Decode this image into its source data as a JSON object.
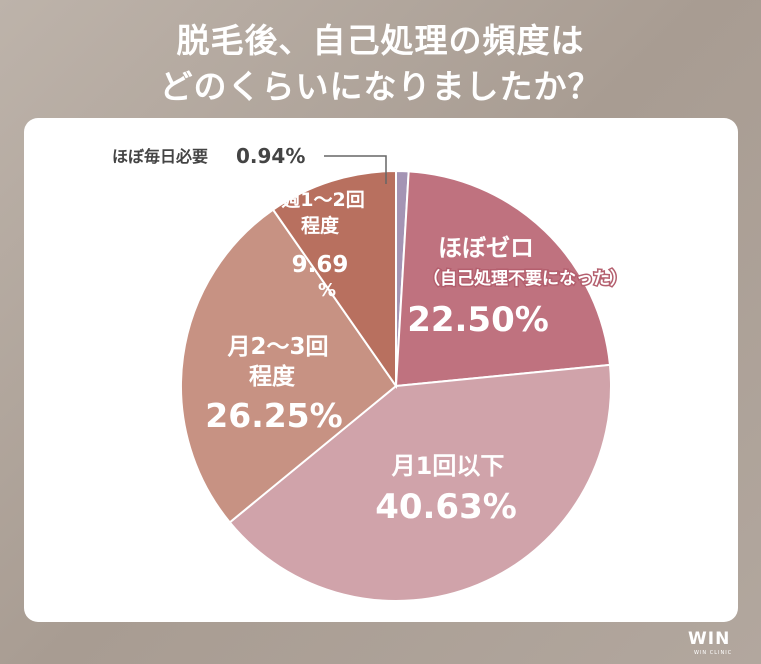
{
  "title_line1": "脱毛後、自己処理の頻度は",
  "title_line2": "どのくらいになりましたか？",
  "watermark": {
    "brand": "WIN",
    "sub": "WIN CLINIC"
  },
  "chart_data": {
    "type": "pie",
    "start_angle_deg": 0,
    "direction": "clockwise",
    "slices": [
      {
        "label": "ほぼ毎日必要",
        "value": 0.94,
        "value_text": "0.94%",
        "color": "#a494b4"
      },
      {
        "label": "ほぼゼロ",
        "sublabel": "（自己処理不要になった）",
        "value": 22.5,
        "value_text": "22.50%",
        "color": "#bf727f"
      },
      {
        "label": "月1回以下",
        "value": 40.63,
        "value_text": "40.63%",
        "color": "#d0a3aa"
      },
      {
        "label": "月2〜3回",
        "label2": "程度",
        "value": 26.25,
        "value_text": "26.25%",
        "color": "#c79283"
      },
      {
        "label": "週1〜2回",
        "label2": "程度",
        "value": 9.69,
        "value_text": "9.69",
        "value_text2": "%",
        "color": "#b8705f"
      }
    ]
  }
}
